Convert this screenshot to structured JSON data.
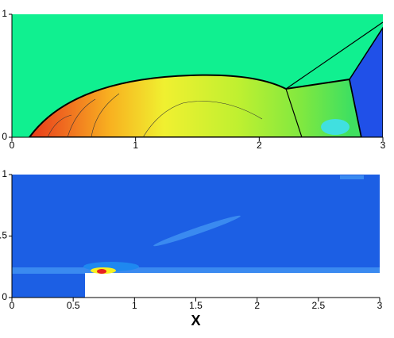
{
  "chart_data": [
    {
      "type": "contour",
      "xlim": [
        0,
        3
      ],
      "ylim": [
        0,
        1
      ],
      "xticks": [
        0,
        1,
        2,
        3
      ],
      "yticks": [
        0,
        1
      ]
    },
    {
      "type": "contour",
      "xlim": [
        0,
        3
      ],
      "ylim": [
        0,
        1
      ],
      "xticks": [
        0,
        {
          "value": 0.5,
          "label": "0.5"
        },
        1,
        {
          "value": 1.5,
          "label": "1.5"
        },
        2,
        {
          "value": 2.5,
          "label": "2.5"
        },
        3
      ],
      "yticks": [
        0,
        {
          "value": 0.5,
          "label": ".5"
        },
        1
      ],
      "xlabel": "X"
    }
  ]
}
